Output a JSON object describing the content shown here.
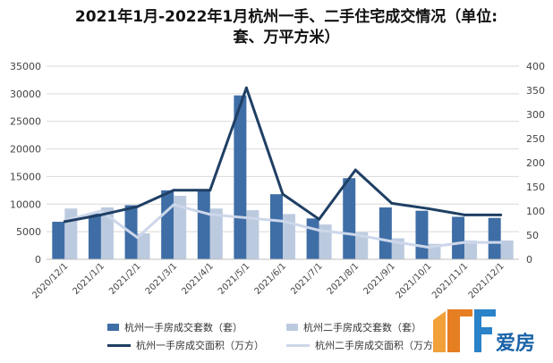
{
  "title": {
    "line1": "2021年1月-2022年1月杭州一手、二手住宅成交情况（单位:",
    "line2": "套、万平方米）"
  },
  "legend": {
    "bar1_label": "杭州一手房成交套数（套）",
    "bar2_label": "杭州二手房成交套数（套）",
    "line1_label": "杭州一手房成交面积（万方）",
    "line2_label": "杭州二手房成交面积（万方）"
  },
  "logo": {
    "brand_text": "爱房"
  },
  "colors": {
    "bar1": "#3f6ea6",
    "bar2": "#bccadf",
    "line1": "#1f3f64",
    "line2": "#cdd7ea",
    "grid": "#d9d9d9"
  },
  "chart_data": {
    "type": "bar",
    "title": "2021年1月-2022年1月杭州一手、二手住宅成交情况（单位: 套、万平方米）",
    "categories": [
      "2020/12/1",
      "2021/1/1",
      "2021/2/1",
      "2021/3/1",
      "2021/4/1",
      "2021/5/1",
      "2021/6/1",
      "2021/7/1",
      "2021/8/1",
      "2021/9/1",
      "2021/10/1",
      "2021/11/1",
      "2021/12/1"
    ],
    "left_axis": {
      "ylim": [
        0,
        35000
      ],
      "ticks": [
        "0",
        "5000",
        "10000",
        "15000",
        "20000",
        "25000",
        "30000",
        "35000"
      ]
    },
    "right_axis": {
      "ylim": [
        0,
        400
      ],
      "ticks": [
        "0",
        "50",
        "100",
        "150",
        "200",
        "250",
        "300",
        "350",
        "400"
      ]
    },
    "grid": true,
    "legend_position": "bottom",
    "series": [
      {
        "name": "杭州一手房成交套数（套）",
        "kind": "bar",
        "axis": "left",
        "values": [
          6800,
          8300,
          9800,
          12500,
          12400,
          29700,
          11800,
          7400,
          14700,
          9400,
          8800,
          7700,
          7500
        ]
      },
      {
        "name": "杭州二手房成交套数（套）",
        "kind": "bar",
        "axis": "left",
        "values": [
          9200,
          9400,
          4700,
          11500,
          9200,
          8900,
          8200,
          6300,
          4900,
          3800,
          2800,
          3400,
          3400
        ]
      },
      {
        "name": "杭州一手房成交面积（万方）",
        "kind": "line",
        "axis": "right",
        "values": [
          78,
          92,
          109,
          143,
          143,
          355,
          135,
          83,
          185,
          116,
          105,
          92,
          92
        ]
      },
      {
        "name": "杭州二手房成交面积（万方）",
        "kind": "line",
        "axis": "right",
        "values": [
          80,
          100,
          45,
          113,
          93,
          86,
          79,
          60,
          51,
          37,
          25,
          35,
          35
        ]
      }
    ]
  }
}
